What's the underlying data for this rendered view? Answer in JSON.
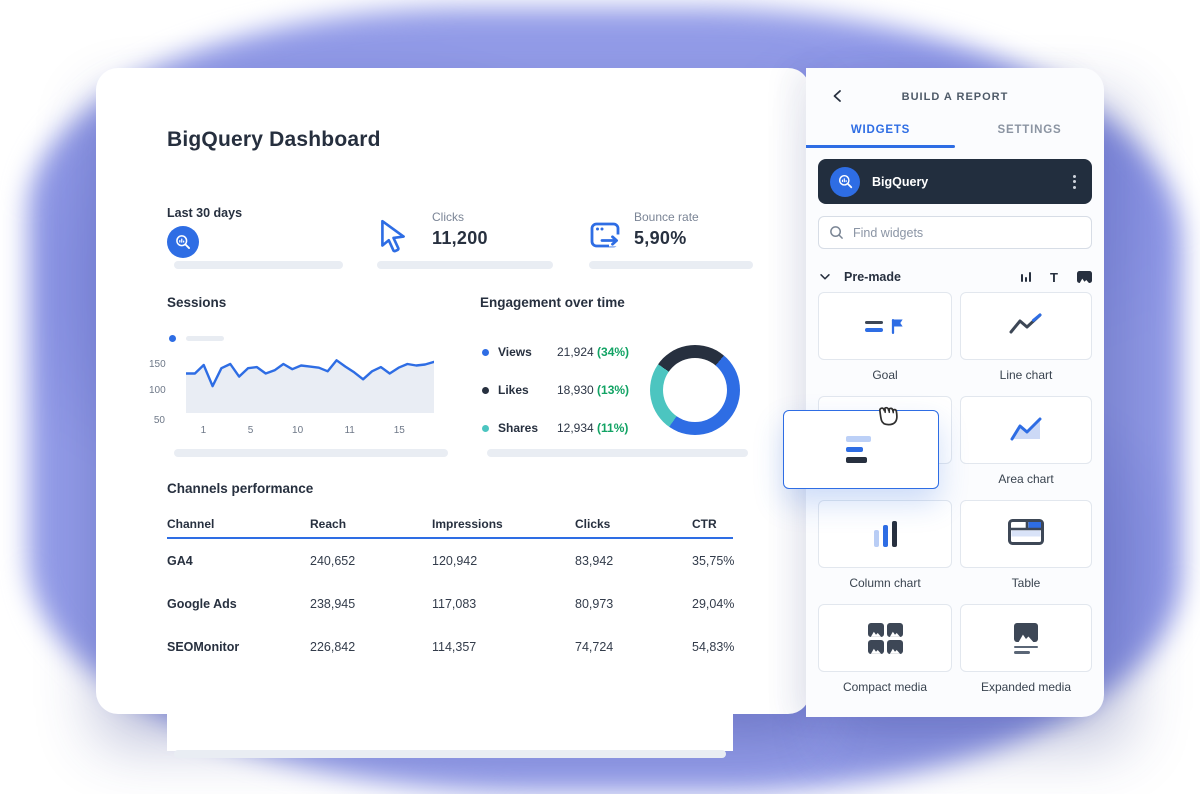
{
  "colors": {
    "accent": "#2e6de4",
    "dark": "#27303f",
    "teal": "#4cc5c0",
    "green": "#12a364",
    "blob": "#939ce8"
  },
  "dashboard": {
    "title": "BigQuery Dashboard",
    "stats": [
      {
        "label": "Last 30 days",
        "icon": "bigquery-icon"
      },
      {
        "label": "Clicks",
        "value": "11,200",
        "icon": "cursor-icon"
      },
      {
        "label": "Bounce rate",
        "value": "5,90%",
        "icon": "bounce-icon"
      }
    ],
    "sessions": {
      "title": "Sessions"
    },
    "engagement": {
      "title": "Engagement over time",
      "legend": [
        {
          "name": "Views",
          "value": "21,924",
          "pct": "(34%)",
          "color": "#2e6de4"
        },
        {
          "name": "Likes",
          "value": "18,930",
          "pct": "(13%)",
          "color": "#27303f"
        },
        {
          "name": "Shares",
          "value": "12,934",
          "pct": "(11%)",
          "color": "#4cc5c0"
        }
      ]
    },
    "channels": {
      "title": "Channels performance",
      "headers": [
        "Channel",
        "Reach",
        "Impressions",
        "Clicks",
        "CTR"
      ],
      "rows": [
        [
          "GA4",
          "240,652",
          "120,942",
          "83,942",
          "35,75%"
        ],
        [
          "Google Ads",
          "238,945",
          "117,083",
          "80,973",
          "29,04%"
        ],
        [
          "SEOMonitor",
          "226,842",
          "114,357",
          "74,724",
          "54,83%"
        ]
      ]
    }
  },
  "panel": {
    "title": "BUILD A REPORT",
    "tabs": [
      {
        "label": "WIDGETS",
        "active": true
      },
      {
        "label": "SETTINGS",
        "active": false
      }
    ],
    "source": {
      "name": "BigQuery"
    },
    "search_placeholder": "Find widgets",
    "section_label": "Pre-made",
    "widgets": [
      {
        "label": "Goal",
        "icon": "goal"
      },
      {
        "label": "Line chart",
        "icon": "line-chart"
      },
      {
        "label": "",
        "icon": "none"
      },
      {
        "label": "Area chart",
        "icon": "area-chart"
      },
      {
        "label": "Column chart",
        "icon": "column-chart"
      },
      {
        "label": "Table",
        "icon": "table"
      },
      {
        "label": "Compact media",
        "icon": "compact-media"
      },
      {
        "label": "Expanded media",
        "icon": "expanded-media"
      }
    ]
  },
  "chart_data": [
    {
      "type": "line",
      "title": "Sessions",
      "x_ticks": [
        "1",
        "5",
        "10",
        "11",
        "15"
      ],
      "y_ticks": [
        "150",
        "100",
        "50"
      ],
      "ylim": [
        50,
        165
      ],
      "values": [
        130,
        130,
        146,
        106,
        140,
        148,
        124,
        140,
        142,
        130,
        136,
        148,
        138,
        145,
        143,
        141,
        134,
        155,
        143,
        132,
        119,
        134,
        142,
        130,
        141,
        148,
        145,
        147,
        152
      ],
      "line_color": "#2e6de4",
      "fill_color": "#e9edf4"
    },
    {
      "type": "donut",
      "title": "Engagement over time",
      "segments": [
        {
          "name": "Views",
          "display_pct": "34%",
          "arc_deg": [
            40,
            215
          ],
          "color": "#2e6de4"
        },
        {
          "name": "Shares",
          "display_pct": "11%",
          "arc_deg": [
            215,
            305
          ],
          "color": "#4cc5c0"
        },
        {
          "name": "Likes",
          "display_pct": "13%",
          "arc_deg": [
            305,
            400
          ],
          "color": "#27303f"
        }
      ]
    }
  ]
}
